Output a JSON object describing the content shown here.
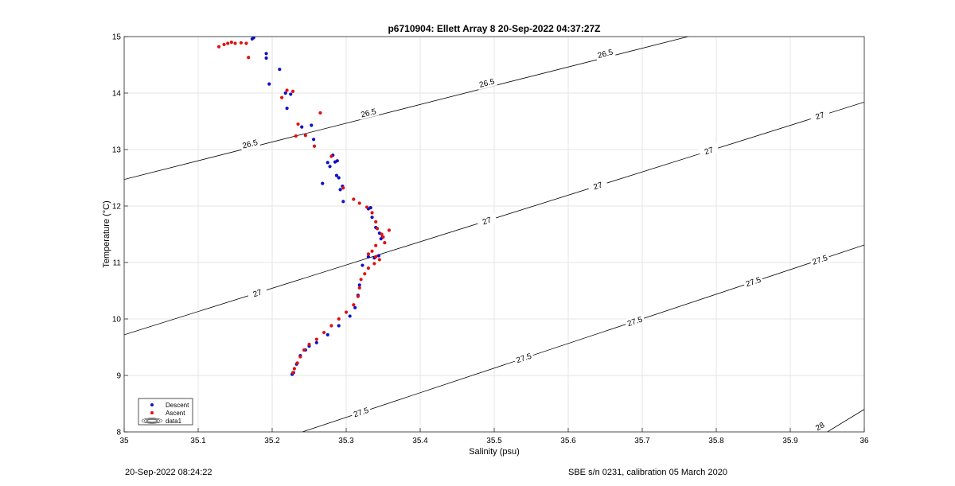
{
  "chart_data": {
    "type": "scatter",
    "title": "p6710904: Ellett Array 8 20-Sep-2022 04:37:27Z",
    "xlabel": "Salinity (psu)",
    "ylabel": "Temperature (°C)",
    "xlim": [
      35,
      36
    ],
    "ylim": [
      8,
      15
    ],
    "xticks": [
      "35",
      "35.1",
      "35.2",
      "35.3",
      "35.4",
      "35.5",
      "35.6",
      "35.7",
      "35.8",
      "35.9",
      "36"
    ],
    "yticks": [
      "8",
      "9",
      "10",
      "11",
      "12",
      "13",
      "14",
      "15"
    ],
    "grid": true,
    "legend_position": "bottom-left",
    "legend": [
      "Descent",
      "Ascent",
      "data1"
    ],
    "colors": {
      "descent": "#1010c8",
      "ascent": "#e01010",
      "contour": "#000000",
      "grid": "#e6e6e6"
    },
    "contours": [
      {
        "level": "26.5",
        "points": [
          [
            35,
            12.47
          ],
          [
            36,
            15.79
          ]
        ],
        "labels": [
          [
            35.17,
            13.1
          ],
          [
            35.33,
            13.65
          ],
          [
            35.49,
            14.18
          ],
          [
            35.65,
            14.7
          ]
        ]
      },
      {
        "level": "27",
        "points": [
          [
            35,
            9.72
          ],
          [
            36,
            13.84
          ]
        ],
        "labels": [
          [
            35.18,
            10.46
          ],
          [
            35.49,
            11.74
          ],
          [
            35.64,
            12.36
          ],
          [
            35.79,
            12.98
          ],
          [
            35.94,
            13.6
          ]
        ]
      },
      {
        "level": "27.5",
        "points": [
          [
            35,
            6.95
          ],
          [
            36,
            11.31
          ]
        ],
        "labels": [
          [
            35.32,
            8.35
          ],
          [
            35.54,
            9.31
          ],
          [
            35.69,
            9.96
          ],
          [
            35.85,
            10.66
          ],
          [
            35.94,
            11.05
          ]
        ]
      },
      {
        "level": "28",
        "points": [
          [
            35.85,
            7.2
          ],
          [
            36,
            8.4
          ]
        ],
        "labels": [
          [
            35.94,
            8.1
          ]
        ]
      }
    ],
    "series": [
      {
        "name": "Descent",
        "points": [
          [
            35.173,
            14.96
          ],
          [
            35.175,
            14.98
          ],
          [
            35.192,
            14.7
          ],
          [
            35.192,
            14.62
          ],
          [
            35.196,
            14.16
          ],
          [
            35.21,
            14.42
          ],
          [
            35.218,
            14.0
          ],
          [
            35.22,
            13.73
          ],
          [
            35.225,
            13.98
          ],
          [
            35.24,
            13.4
          ],
          [
            35.253,
            13.43
          ],
          [
            35.256,
            13.18
          ],
          [
            35.268,
            12.4
          ],
          [
            35.275,
            12.77
          ],
          [
            35.278,
            12.7
          ],
          [
            35.282,
            12.9
          ],
          [
            35.285,
            12.78
          ],
          [
            35.287,
            12.54
          ],
          [
            35.29,
            12.5
          ],
          [
            35.288,
            12.8
          ],
          [
            35.292,
            12.29
          ],
          [
            35.295,
            12.35
          ],
          [
            35.296,
            12.08
          ],
          [
            35.33,
            11.95
          ],
          [
            35.333,
            11.97
          ],
          [
            35.335,
            11.8
          ],
          [
            35.34,
            11.62
          ],
          [
            35.345,
            11.52
          ],
          [
            35.347,
            11.42
          ],
          [
            35.349,
            11.45
          ],
          [
            35.344,
            11.12
          ],
          [
            35.338,
            11.08
          ],
          [
            35.33,
            11.1
          ],
          [
            35.322,
            10.95
          ],
          [
            35.318,
            10.6
          ],
          [
            35.316,
            10.42
          ],
          [
            35.312,
            10.2
          ],
          [
            35.305,
            10.05
          ],
          [
            35.29,
            9.88
          ],
          [
            35.275,
            9.72
          ],
          [
            35.26,
            9.58
          ],
          [
            35.25,
            9.52
          ],
          [
            35.245,
            9.45
          ],
          [
            35.238,
            9.35
          ],
          [
            35.233,
            9.2
          ],
          [
            35.229,
            9.05
          ],
          [
            35.227,
            9.02
          ]
        ]
      },
      {
        "name": "Ascent",
        "points": [
          [
            35.128,
            14.82
          ],
          [
            35.135,
            14.86
          ],
          [
            35.14,
            14.88
          ],
          [
            35.145,
            14.9
          ],
          [
            35.15,
            14.88
          ],
          [
            35.158,
            14.89
          ],
          [
            35.165,
            14.88
          ],
          [
            35.168,
            14.63
          ],
          [
            35.213,
            13.92
          ],
          [
            35.22,
            14.05
          ],
          [
            35.228,
            14.03
          ],
          [
            35.232,
            13.24
          ],
          [
            35.235,
            13.45
          ],
          [
            35.245,
            13.25
          ],
          [
            35.257,
            13.06
          ],
          [
            35.265,
            13.65
          ],
          [
            35.28,
            12.88
          ],
          [
            35.296,
            12.32
          ],
          [
            35.31,
            12.12
          ],
          [
            35.318,
            12.05
          ],
          [
            35.328,
            11.98
          ],
          [
            35.335,
            11.88
          ],
          [
            35.34,
            11.72
          ],
          [
            35.342,
            11.6
          ],
          [
            35.348,
            11.5
          ],
          [
            35.352,
            11.35
          ],
          [
            35.358,
            11.57
          ],
          [
            35.35,
            11.45
          ],
          [
            35.34,
            11.3
          ],
          [
            35.335,
            11.2
          ],
          [
            35.33,
            11.15
          ],
          [
            35.34,
            11.1
          ],
          [
            35.345,
            11.05
          ],
          [
            35.338,
            10.98
          ],
          [
            35.33,
            10.9
          ],
          [
            35.325,
            10.8
          ],
          [
            35.32,
            10.7
          ],
          [
            35.318,
            10.55
          ],
          [
            35.316,
            10.4
          ],
          [
            35.31,
            10.25
          ],
          [
            35.3,
            10.12
          ],
          [
            35.29,
            10.0
          ],
          [
            35.28,
            9.88
          ],
          [
            35.27,
            9.76
          ],
          [
            35.26,
            9.64
          ],
          [
            35.25,
            9.55
          ],
          [
            35.243,
            9.45
          ],
          [
            35.238,
            9.33
          ],
          [
            35.234,
            9.22
          ],
          [
            35.23,
            9.12
          ],
          [
            35.228,
            9.05
          ]
        ]
      }
    ]
  },
  "footer": {
    "left": "20-Sep-2022 08:24:22",
    "right": "SBE s/n 0231, calibration 05 March 2020"
  }
}
